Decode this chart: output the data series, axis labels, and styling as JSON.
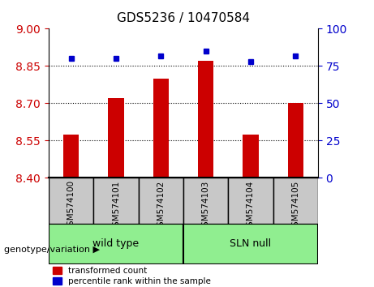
{
  "title": "GDS5236 / 10470584",
  "categories": [
    "GSM574100",
    "GSM574101",
    "GSM574102",
    "GSM574103",
    "GSM574104",
    "GSM574105"
  ],
  "red_values": [
    8.575,
    8.72,
    8.8,
    8.87,
    8.575,
    8.7
  ],
  "blue_values": [
    80,
    80,
    82,
    85,
    78,
    82
  ],
  "ymin": 8.4,
  "ymax": 9.0,
  "yticks": [
    8.4,
    8.55,
    8.7,
    8.85,
    9.0
  ],
  "y2min": 0,
  "y2max": 100,
  "y2ticks": [
    0,
    25,
    50,
    75,
    100
  ],
  "bar_color": "#cc0000",
  "dot_color": "#0000cc",
  "grid_color": "#000000",
  "wild_type_label": "wild type",
  "sln_null_label": "SLN null",
  "wild_type_color": "#90ee90",
  "sln_null_color": "#90ee90",
  "tick_label_color_left": "#cc0000",
  "tick_label_color_right": "#0000cc",
  "legend_red_label": "transformed count",
  "legend_blue_label": "percentile rank within the sample",
  "genotype_label": "genotype/variation",
  "xlabel_area_color": "#c8c8c8",
  "wild_type_count": 3,
  "sln_null_count": 3
}
